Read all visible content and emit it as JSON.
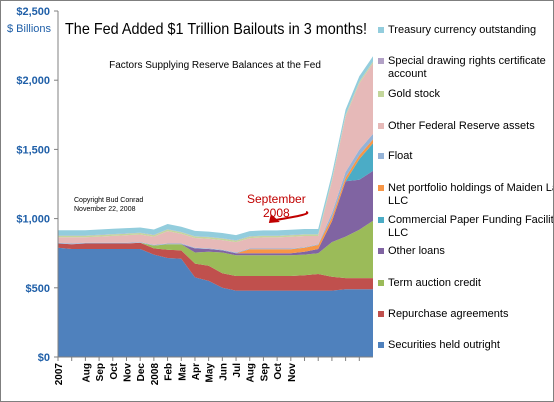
{
  "chart_data": {
    "type": "area",
    "stacked": true,
    "title": "The Fed Added $1 Trillion Bailouts in 3 months!",
    "subtitle": "Factors Supplying Reserve Balances at the Fed",
    "ylabel": "$ Billions",
    "ylim": [
      0,
      2500
    ],
    "yticks": [
      0,
      500,
      1000,
      1500,
      2000,
      2500
    ],
    "ytick_labels": [
      "$0",
      "$500",
      "$1,000",
      "$1,500",
      "$2,000",
      "$2,500"
    ],
    "xlim": [
      0,
      23
    ],
    "xticks": [
      0,
      1,
      2,
      3,
      4,
      5,
      6,
      7,
      8,
      9,
      10,
      11,
      12,
      13,
      14,
      15,
      16,
      17,
      18,
      19,
      20,
      21,
      22
    ],
    "xtick_labels": [
      "2007",
      "Aug",
      "Sep",
      "Oct",
      "Nov",
      "Dec",
      "2008",
      "Feb",
      "Mar",
      "Apr",
      "May",
      "Jun",
      "Jul",
      "Aug",
      "Sep",
      "Oct",
      "Nov"
    ],
    "xtick_label_positions": [
      0,
      2,
      3,
      4,
      5,
      6,
      7,
      8,
      9,
      10,
      11,
      12,
      13,
      14,
      15,
      16,
      17
    ],
    "grid": false,
    "legend_position": "right",
    "annotations": [
      {
        "text": "Copyright Bud Conrad\nNovember 22, 2008",
        "color": "#000000"
      },
      {
        "text": "September\n2008",
        "color": "#c00000",
        "arrow_to": [
          16.2,
          975
        ]
      }
    ],
    "x": [
      0,
      1,
      2,
      3,
      4,
      5,
      6,
      7,
      8,
      9,
      10,
      11,
      12,
      13,
      14,
      15,
      16,
      17,
      18,
      19,
      20,
      21,
      22,
      23
    ],
    "series": [
      {
        "name": "Securities held outright",
        "color": "#4f81bd",
        "values": [
          790,
          780,
          780,
          780,
          780,
          780,
          780,
          740,
          715,
          710,
          575,
          550,
          500,
          480,
          480,
          480,
          480,
          480,
          480,
          480,
          480,
          490,
          490,
          490
        ]
      },
      {
        "name": "Repurchase agreements",
        "color": "#c0504d",
        "values": [
          30,
          35,
          40,
          40,
          40,
          40,
          45,
          45,
          60,
          60,
          100,
          110,
          105,
          105,
          105,
          105,
          105,
          105,
          110,
          120,
          100,
          80,
          80,
          80
        ]
      },
      {
        "name": "Term auction credit",
        "color": "#9bbb59",
        "values": [
          0,
          0,
          0,
          0,
          0,
          0,
          0,
          20,
          40,
          45,
          80,
          100,
          150,
          150,
          150,
          150,
          150,
          150,
          150,
          150,
          250,
          300,
          350,
          415
        ]
      },
      {
        "name": "Other loans",
        "color": "#8064a2",
        "values": [
          0,
          0,
          0,
          0,
          0,
          0,
          0,
          0,
          0,
          0,
          30,
          20,
          15,
          15,
          15,
          15,
          15,
          15,
          20,
          30,
          150,
          400,
          360,
          360
        ]
      },
      {
        "name": "Commercial Paper Funding Facility LLC",
        "color": "#4bacc6",
        "values": [
          0,
          0,
          0,
          0,
          0,
          0,
          0,
          0,
          0,
          0,
          0,
          0,
          0,
          0,
          0,
          0,
          0,
          0,
          0,
          0,
          0,
          0,
          150,
          200
        ]
      },
      {
        "name": "Net portfolio holdings of Maiden Lane LLC",
        "color": "#f79646",
        "values": [
          0,
          0,
          0,
          0,
          0,
          0,
          0,
          0,
          0,
          0,
          0,
          0,
          0,
          0,
          29,
          29,
          29,
          29,
          29,
          29,
          29,
          27,
          27,
          27
        ]
      },
      {
        "name": "Float",
        "color": "#95b3d7",
        "values": [
          5,
          5,
          5,
          5,
          5,
          5,
          5,
          5,
          5,
          5,
          5,
          5,
          5,
          5,
          5,
          5,
          5,
          5,
          5,
          5,
          30,
          40,
          40,
          40
        ]
      },
      {
        "name": "Other Federal Reserve assets",
        "color": "#e6b9b8",
        "values": [
          40,
          45,
          40,
          45,
          50,
          55,
          55,
          60,
          90,
          70,
          70,
          70,
          70,
          75,
          75,
          80,
          80,
          85,
          80,
          60,
          230,
          400,
          480,
          510
        ]
      },
      {
        "name": "Gold stock",
        "color": "#c3d69b",
        "values": [
          11,
          11,
          11,
          11,
          11,
          11,
          11,
          11,
          11,
          11,
          11,
          11,
          11,
          11,
          11,
          11,
          11,
          11,
          11,
          11,
          11,
          11,
          11,
          11
        ]
      },
      {
        "name": "Special drawing rights certificate account",
        "color": "#b3a2c7",
        "values": [
          2,
          2,
          2,
          2,
          2,
          2,
          2,
          2,
          2,
          2,
          2,
          2,
          2,
          2,
          2,
          2,
          2,
          2,
          2,
          2,
          2,
          2,
          2,
          2
        ]
      },
      {
        "name": "Treasury currency outstanding",
        "color": "#93cddd",
        "values": [
          38,
          38,
          38,
          38,
          38,
          38,
          38,
          38,
          38,
          38,
          38,
          38,
          38,
          38,
          38,
          38,
          38,
          38,
          38,
          38,
          38,
          38,
          38,
          38
        ]
      }
    ]
  }
}
